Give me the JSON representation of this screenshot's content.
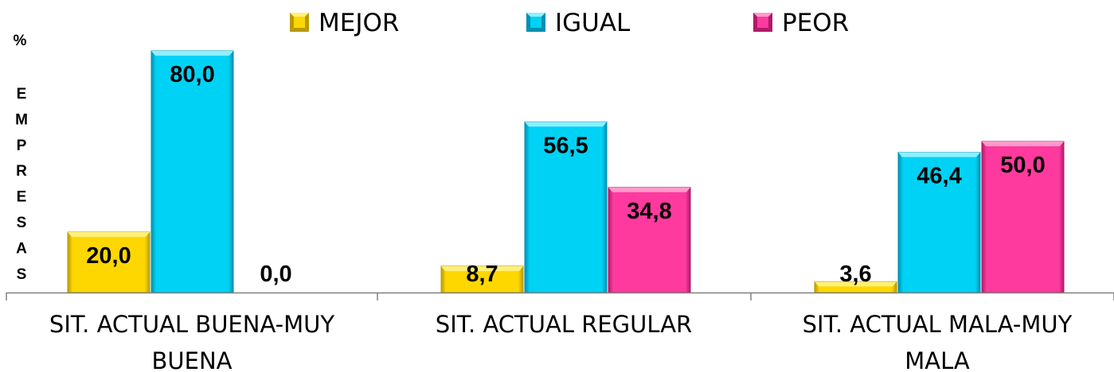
{
  "chart_data": {
    "type": "bar",
    "categories": [
      [
        "SIT. ACTUAL BUENA-MUY",
        "BUENA"
      ],
      [
        "SIT. ACTUAL REGULAR"
      ],
      [
        "SIT. ACTUAL MALA-MUY",
        "MALA"
      ]
    ],
    "series": [
      {
        "name": "MEJOR",
        "values": [
          20.0,
          8.7,
          3.6
        ],
        "labels": [
          "20,0",
          "8,7",
          "3,6"
        ],
        "color": "#FFD700",
        "dark": "#B89A00",
        "light": "#FFF07A"
      },
      {
        "name": "IGUAL",
        "values": [
          80.0,
          56.5,
          46.4
        ],
        "labels": [
          "80,0",
          "56,5",
          "46,4"
        ],
        "color": "#00D2F5",
        "dark": "#0090B0",
        "light": "#8EF0FF"
      },
      {
        "name": "PEOR",
        "values": [
          0.0,
          34.8,
          50.0
        ],
        "labels": [
          "0,0",
          "34,8",
          "50,0"
        ],
        "color": "#FF3A9E",
        "dark": "#B01A68",
        "light": "#FF9ACB"
      }
    ],
    "ylabel_top": "%",
    "ylabel_letters": [
      "E",
      "M",
      "P",
      "R",
      "E",
      "S",
      "A",
      "S"
    ],
    "ylim": [
      0,
      85
    ],
    "grid": false,
    "legend": "top"
  }
}
